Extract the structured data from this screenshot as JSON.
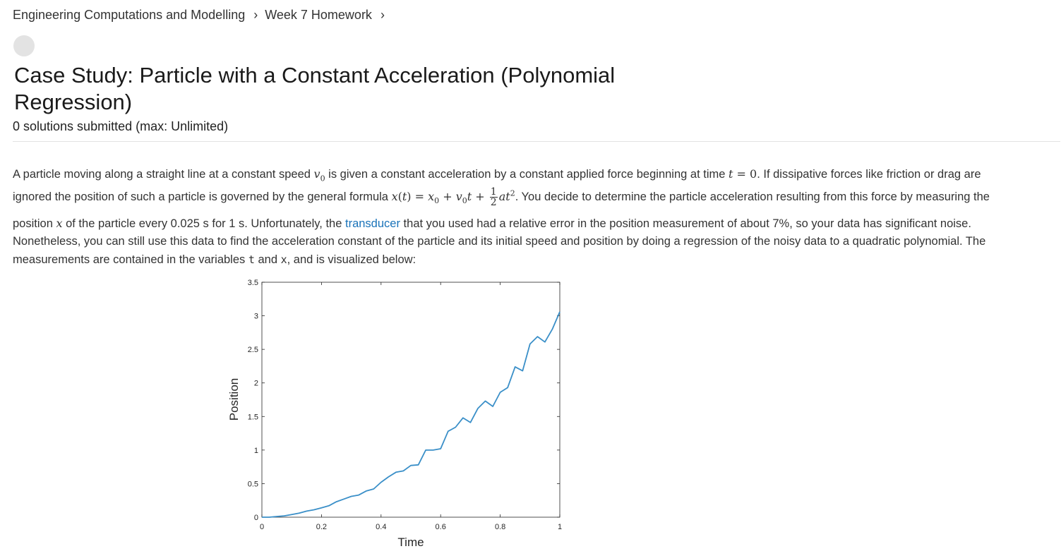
{
  "breadcrumb": {
    "course": "Engineering Computations and Modelling",
    "week": "Week 7 Homework",
    "sep": "›"
  },
  "problem": {
    "title": "Case Study: Particle with a Constant Acceleration (Polynomial Regression)",
    "submissions": "0 solutions submitted (max: Unlimited)"
  },
  "description": {
    "l1_a": "A particle moving along a straight line at a constant speed ",
    "l1_m1": "v",
    "l1_m1sub": "0",
    "l1_b": " is given a constant acceleration by a constant applied force beginning at time ",
    "l1_m2": "t",
    "l1_m2r": " = 0",
    "l1_c": ". If dissipative forces like friction or drag are",
    "l2_a": "ignored the position of such a particle is governed by the general formula ",
    "l2_f1": "x",
    "l2_f2": "(",
    "l2_f3": "t",
    "l2_f4": ") = ",
    "l2_f5": "x",
    "l2_f5sub": "0",
    "l2_f6": " + ",
    "l2_f7": "v",
    "l2_f7sub": "0",
    "l2_f8": "t",
    "l2_f9": " + ",
    "l2_fnum": "1",
    "l2_fden": "2",
    "l2_f10": "at",
    "l2_f10sup": "2",
    "l2_b": ". You decide to determine the particle acceleration resulting from this force by measuring the",
    "l3_a": "position ",
    "l3_m": "x",
    "l3_b": " of the particle every 0.025 s for 1 s. Unfortunately, the ",
    "l3_link": "transducer",
    "l3_c": " that you used had a relative error in the position measurement of about 7%, so your data has significant noise.",
    "l4": "Nonetheless, you can still use this data to find the acceleration constant of the particle and its initial speed and position by doing a regression of the noisy data to a quadratic polynomial. The",
    "l5_a": "measurements are contained in the variables ",
    "l5_v1": "t",
    "l5_b": " and ",
    "l5_v2": "x",
    "l5_c": ", and is visualized below:"
  },
  "chart_data": {
    "type": "line",
    "xlabel": "Time",
    "ylabel": "Position",
    "xlim": [
      0,
      1
    ],
    "ylim": [
      0,
      3.5
    ],
    "xticks": [
      "0",
      "0.2",
      "0.4",
      "0.6",
      "0.8",
      "1"
    ],
    "yticks": [
      "0",
      "0.5",
      "1",
      "1.5",
      "2",
      "2.5",
      "3",
      "3.5"
    ],
    "grid": false,
    "line_color": "#3a8fc8",
    "x": [
      0,
      0.025,
      0.05,
      0.075,
      0.1,
      0.125,
      0.15,
      0.175,
      0.2,
      0.225,
      0.25,
      0.275,
      0.3,
      0.325,
      0.35,
      0.375,
      0.4,
      0.425,
      0.45,
      0.475,
      0.5,
      0.525,
      0.55,
      0.575,
      0.6,
      0.625,
      0.65,
      0.675,
      0.7,
      0.725,
      0.75,
      0.775,
      0.8,
      0.825,
      0.85,
      0.875,
      0.9,
      0.925,
      0.95,
      0.975,
      1.0
    ],
    "y": [
      0.0,
      0.0,
      0.01,
      0.02,
      0.04,
      0.06,
      0.09,
      0.11,
      0.14,
      0.17,
      0.23,
      0.27,
      0.31,
      0.33,
      0.39,
      0.42,
      0.52,
      0.6,
      0.67,
      0.69,
      0.77,
      0.78,
      1.0,
      1.0,
      1.02,
      1.28,
      1.34,
      1.48,
      1.41,
      1.62,
      1.73,
      1.65,
      1.86,
      1.93,
      2.24,
      2.18,
      2.58,
      2.69,
      2.61,
      2.8,
      3.06
    ]
  }
}
